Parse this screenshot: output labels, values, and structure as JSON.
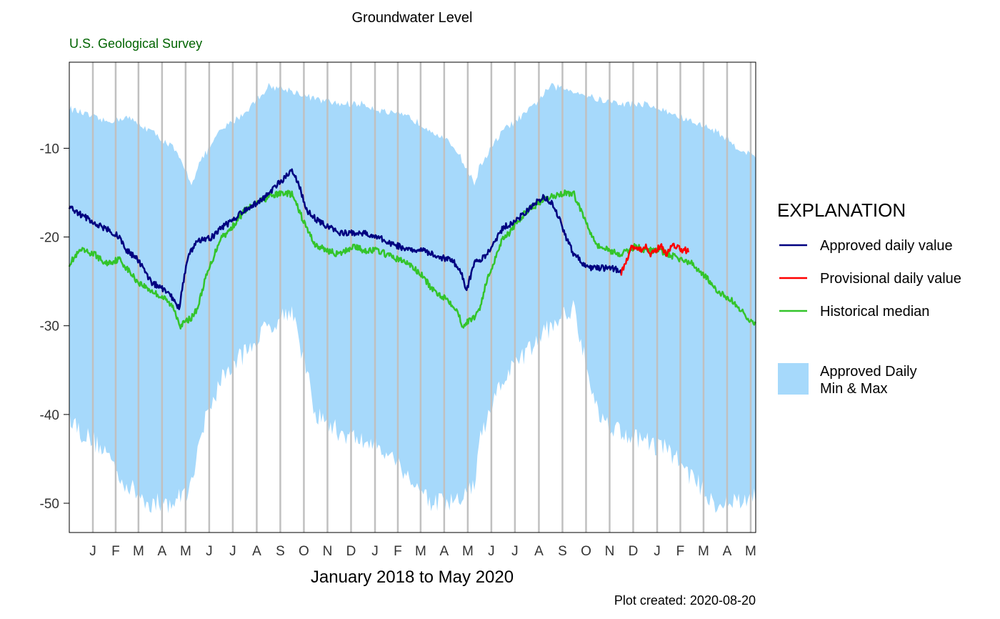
{
  "chart_data": {
    "type": "line",
    "title": "Groundwater Level",
    "subtitle": "U.S. Geological Survey",
    "xlabel": "January 2018 to May 2020",
    "ylabel": "",
    "footer": "Plot created: 2020-08-20",
    "ylim": [
      -53.3,
      -0.3
    ],
    "yticks": [
      -10,
      -20,
      -30,
      -40,
      -50
    ],
    "x_range": [
      "2017-12-17",
      "2020-05-23"
    ],
    "month_ticks": [
      "J",
      "F",
      "M",
      "A",
      "M",
      "J",
      "J",
      "A",
      "S",
      "O",
      "N",
      "D",
      "J",
      "F",
      "M",
      "A",
      "M",
      "J",
      "J",
      "A",
      "S",
      "O",
      "N",
      "D",
      "J",
      "F",
      "M",
      "A",
      "M"
    ],
    "month_tick_dates": [
      "2018-01-01",
      "2018-02-01",
      "2018-03-01",
      "2018-04-01",
      "2018-05-01",
      "2018-06-01",
      "2018-07-01",
      "2018-08-01",
      "2018-09-01",
      "2018-10-01",
      "2018-11-01",
      "2018-12-01",
      "2019-01-01",
      "2019-02-01",
      "2019-03-01",
      "2019-04-01",
      "2019-05-01",
      "2019-06-01",
      "2019-07-01",
      "2019-08-01",
      "2019-09-01",
      "2019-10-01",
      "2019-11-01",
      "2019-12-01",
      "2020-01-01",
      "2020-02-01",
      "2020-03-01",
      "2020-04-01",
      "2020-05-01"
    ],
    "grid": "vertical lines at month boundaries",
    "legend": {
      "title": "EXPLANATION",
      "placement": "right",
      "entries": [
        {
          "label": "Approved daily value",
          "color": "#000080",
          "kind": "line"
        },
        {
          "label": "Provisional daily value",
          "color": "#ff0000",
          "kind": "line"
        },
        {
          "label": "Historical median",
          "color": "#33c42a",
          "kind": "line"
        },
        {
          "label": "Approved Daily\nMin & Max",
          "color": "#a6d9fb",
          "kind": "area"
        }
      ]
    },
    "series": [
      {
        "name": "Approved Daily\nMin & Max",
        "kind": "band",
        "color": "#a6d9fb",
        "x": [
          "2017-12-17",
          "2018-01-01",
          "2018-02-01",
          "2018-03-01",
          "2018-04-01",
          "2018-05-01",
          "2018-05-25",
          "2018-06-01",
          "2018-07-01",
          "2018-08-01",
          "2018-09-01",
          "2018-10-01",
          "2018-11-01",
          "2018-12-01",
          "2019-01-01",
          "2019-02-01",
          "2019-03-01",
          "2019-04-01",
          "2019-05-01",
          "2019-05-25",
          "2019-06-01",
          "2019-07-01",
          "2019-08-01",
          "2019-09-01",
          "2019-10-01",
          "2019-11-01",
          "2019-12-01",
          "2020-01-01",
          "2020-02-01",
          "2020-03-01",
          "2020-04-01",
          "2020-05-01",
          "2020-05-23"
        ],
        "max": [
          -5.5,
          -6,
          -7,
          -6.5,
          -8,
          -10,
          -14,
          -12,
          -8,
          -6,
          -3,
          -3.5,
          -4.5,
          -5,
          -5,
          -6,
          -6.5,
          -8,
          -10,
          -14,
          -12,
          -8,
          -6,
          -3,
          -3.5,
          -4.5,
          -5,
          -5,
          -6,
          -7,
          -8,
          -10,
          -11
        ],
        "min": [
          -40,
          -42,
          -44,
          -48,
          -50,
          -50,
          -48,
          -43,
          -36,
          -33,
          -30,
          -28,
          -40,
          -42,
          -43,
          -44,
          -47,
          -50,
          -50,
          -48,
          -43,
          -36,
          -33,
          -30,
          -28,
          -40,
          -42,
          -43,
          -44,
          -47,
          -50,
          -50,
          -49
        ]
      },
      {
        "name": "Historical median",
        "color": "#33c42a",
        "x": [
          "2017-12-17",
          "2018-01-01",
          "2018-01-20",
          "2018-02-01",
          "2018-02-20",
          "2018-03-01",
          "2018-03-15",
          "2018-04-01",
          "2018-04-20",
          "2018-05-01",
          "2018-05-10",
          "2018-05-25",
          "2018-06-01",
          "2018-06-10",
          "2018-07-01",
          "2018-07-10",
          "2018-08-01",
          "2018-08-20",
          "2018-09-01",
          "2018-09-20",
          "2018-10-01",
          "2018-10-10",
          "2018-10-20",
          "2018-11-01",
          "2018-12-01",
          "2018-12-20",
          "2019-01-01",
          "2019-01-20",
          "2019-02-01",
          "2019-03-01",
          "2019-03-20",
          "2019-04-01",
          "2019-04-20",
          "2019-05-01",
          "2019-05-10",
          "2019-05-25",
          "2019-06-01",
          "2019-06-10",
          "2019-07-01",
          "2019-07-10",
          "2019-08-01",
          "2019-08-20",
          "2019-09-01",
          "2019-09-20",
          "2019-10-01",
          "2019-10-10",
          "2019-10-20",
          "2019-11-01",
          "2019-12-01",
          "2019-12-20",
          "2020-01-01",
          "2020-01-20",
          "2020-02-01",
          "2020-03-01",
          "2020-03-20",
          "2020-04-01",
          "2020-04-20",
          "2020-05-01",
          "2020-05-23"
        ],
        "values": [
          -23,
          -21.5,
          -22,
          -23,
          -22.5,
          -23.5,
          -25,
          -26,
          -27,
          -28,
          -30,
          -29,
          -28,
          -25,
          -20,
          -19.5,
          -17,
          -16,
          -15.5,
          -15,
          -15.2,
          -17,
          -19,
          -21,
          -22,
          -21,
          -21.5,
          -21.5,
          -22,
          -23,
          -24.5,
          -26,
          -27,
          -28,
          -30,
          -29,
          -28,
          -25,
          -20,
          -19.5,
          -17,
          -16,
          -15.5,
          -15,
          -15.2,
          -17,
          -19,
          -21,
          -22,
          -21,
          -21.5,
          -21.5,
          -22,
          -23,
          -24.5,
          -26,
          -27,
          -28,
          -30
        ]
      },
      {
        "name": "Approved daily value",
        "color": "#000080",
        "x": [
          "2017-12-17",
          "2018-01-01",
          "2018-01-20",
          "2018-02-01",
          "2018-02-20",
          "2018-03-01",
          "2018-03-15",
          "2018-04-01",
          "2018-04-20",
          "2018-04-30",
          "2018-05-08",
          "2018-05-20",
          "2018-06-01",
          "2018-06-20",
          "2018-07-01",
          "2018-07-10",
          "2018-08-01",
          "2018-08-20",
          "2018-09-01",
          "2018-09-20",
          "2018-10-01",
          "2018-10-10",
          "2018-10-20",
          "2018-11-01",
          "2018-11-20",
          "2018-12-01",
          "2018-12-20",
          "2019-01-01",
          "2019-01-20",
          "2019-02-01",
          "2019-03-01",
          "2019-03-20",
          "2019-04-01",
          "2019-04-20",
          "2019-05-01",
          "2019-05-08",
          "2019-05-15",
          "2019-05-25",
          "2019-06-10",
          "2019-07-01",
          "2019-07-20",
          "2019-08-01",
          "2019-08-15",
          "2019-08-22",
          "2019-09-01",
          "2019-09-10",
          "2019-09-20",
          "2019-10-01",
          "2019-10-20",
          "2019-11-01",
          "2019-11-20",
          "2019-12-01"
        ],
        "values": [
          -16.5,
          -17.5,
          -18.5,
          -19,
          -20,
          -21.5,
          -22.5,
          -25,
          -26,
          -27,
          -28,
          -22,
          -20.5,
          -20,
          -19,
          -18.5,
          -17,
          -16,
          -15,
          -13.5,
          -12.5,
          -14,
          -17,
          -18,
          -19,
          -19.5,
          -19.5,
          -19.5,
          -20,
          -20.5,
          -21.5,
          -21.5,
          -22,
          -22.5,
          -23,
          -24,
          -26,
          -23,
          -22,
          -19,
          -18,
          -17,
          -16,
          -15.5,
          -16,
          -17.5,
          -20,
          -22,
          -23.5,
          -23.5,
          -23.5,
          -24
        ]
      },
      {
        "name": "Provisional daily value",
        "color": "#ff0000",
        "x": [
          "2019-12-01",
          "2019-12-08",
          "2019-12-15",
          "2019-12-25",
          "2020-01-01",
          "2020-01-08",
          "2020-01-15",
          "2020-01-22",
          "2020-01-29",
          "2020-02-05",
          "2020-02-12",
          "2020-02-19",
          "2020-02-26"
        ],
        "values": [
          -24,
          -22.5,
          -21,
          -21.5,
          -21,
          -22,
          -21.5,
          -21,
          -22,
          -21,
          -21,
          -21.5,
          -21.5
        ]
      }
    ]
  }
}
